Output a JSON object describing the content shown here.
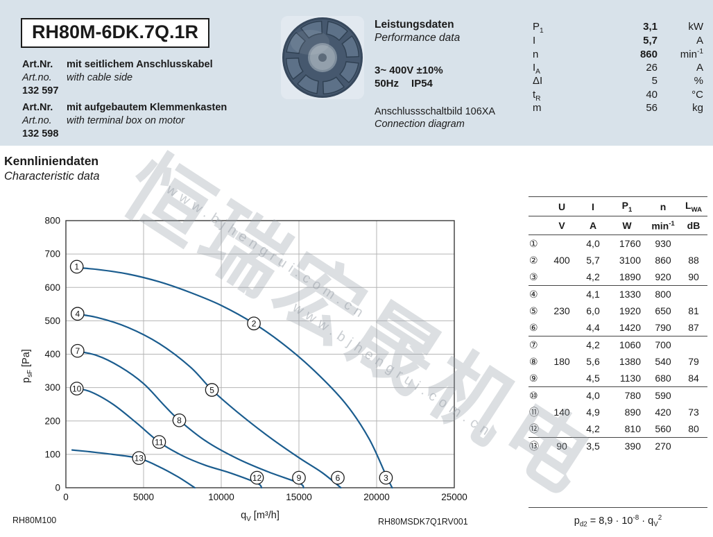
{
  "header": {
    "bg": "#d8e2ea",
    "model": "RH80M-6DK.7Q.1R",
    "articles": [
      {
        "label_de": "Art.Nr.",
        "desc_de": "mit seitlichem Anschlusskabel",
        "label_en": "Art.no.",
        "desc_en": "with cable side",
        "number": "132 597"
      },
      {
        "label_de": "Art.Nr.",
        "desc_de": "mit aufgebautem Klemmenkasten",
        "label_en": "Art.no.",
        "desc_en": "with terminal box on motor",
        "number": "132 598"
      }
    ],
    "performance": {
      "title_de": "Leistungsdaten",
      "title_en": "Performance data",
      "voltage": "3~ 400V ±10%",
      "frequency": "50Hz",
      "protection": "IP54",
      "diagram_de": "Anschlussschaltbild 106XA",
      "diagram_en": "Connection diagram",
      "params": [
        {
          "sym": [
            [
              "t",
              "P"
            ],
            [
              "sub",
              "1"
            ]
          ],
          "value": "3,1",
          "unit": [
            [
              "t",
              "kW"
            ]
          ],
          "bold": true
        },
        {
          "sym": [
            [
              "t",
              "I"
            ]
          ],
          "value": "5,7",
          "unit": [
            [
              "t",
              "A"
            ]
          ],
          "bold": true
        },
        {
          "sym": [
            [
              "t",
              "n"
            ]
          ],
          "value": "860",
          "unit": [
            [
              "t",
              "min"
            ],
            [
              "sup",
              "-1"
            ]
          ],
          "bold": true
        },
        {
          "sym": [
            [
              "t",
              "I"
            ],
            [
              "sub",
              "A"
            ]
          ],
          "value": "26",
          "unit": [
            [
              "t",
              "A"
            ]
          ],
          "bold": false
        },
        {
          "sym": [
            [
              "t",
              "ΔI"
            ]
          ],
          "value": "5",
          "unit": [
            [
              "t",
              "%"
            ]
          ],
          "bold": false
        },
        {
          "sym": [
            [
              "t",
              "t"
            ],
            [
              "sub",
              "R"
            ]
          ],
          "value": "40",
          "unit": [
            [
              "t",
              "°C"
            ]
          ],
          "bold": false
        },
        {
          "sym": [
            [
              "t",
              "m"
            ]
          ],
          "value": "56",
          "unit": [
            [
              "t",
              "kg"
            ]
          ],
          "bold": false
        }
      ]
    }
  },
  "section": {
    "title_de": "Kennliniendaten",
    "title_en": "Characteristic data"
  },
  "chart_data": {
    "type": "line",
    "title": "Kennliniendaten / Characteristic data",
    "xlabel": "qV [m³/h]",
    "ylabel": "psF [Pa]",
    "xlabel_tokens": [
      [
        "t",
        "q"
      ],
      [
        "sub",
        "V"
      ],
      [
        "t",
        " [m³/h]"
      ]
    ],
    "ylabel_tokens": [
      [
        "t",
        "p"
      ],
      [
        "sub",
        "sF"
      ],
      [
        "t",
        " [Pa]"
      ]
    ],
    "xlim": [
      0,
      25000
    ],
    "ylim": [
      0,
      800
    ],
    "xticks": [
      0,
      5000,
      10000,
      15000,
      20000,
      25000
    ],
    "yticks": [
      0,
      100,
      200,
      300,
      400,
      500,
      600,
      700,
      800
    ],
    "grid": true,
    "legend": false,
    "curve_color": "#1a5c8e",
    "series": [
      {
        "name": "400V",
        "points": [
          [
            400,
            660
          ],
          [
            2000,
            654
          ],
          [
            4000,
            640
          ],
          [
            6000,
            617
          ],
          [
            8000,
            585
          ],
          [
            10000,
            546
          ],
          [
            12100,
            492
          ],
          [
            14000,
            430
          ],
          [
            16000,
            350
          ],
          [
            18000,
            252
          ],
          [
            19500,
            148
          ],
          [
            20600,
            38
          ],
          [
            21000,
            0
          ]
        ]
      },
      {
        "name": "230V",
        "points": [
          [
            400,
            522
          ],
          [
            2000,
            510
          ],
          [
            4000,
            480
          ],
          [
            6000,
            432
          ],
          [
            8000,
            362
          ],
          [
            9400,
            293
          ],
          [
            11000,
            228
          ],
          [
            13000,
            155
          ],
          [
            15000,
            90
          ],
          [
            16500,
            45
          ],
          [
            17700,
            0
          ]
        ]
      },
      {
        "name": "180V",
        "points": [
          [
            400,
            412
          ],
          [
            2000,
            396
          ],
          [
            3500,
            362
          ],
          [
            5000,
            312
          ],
          [
            6300,
            248
          ],
          [
            7300,
            202
          ],
          [
            9000,
            140
          ],
          [
            11000,
            88
          ],
          [
            13000,
            48
          ],
          [
            15000,
            14
          ],
          [
            15300,
            0
          ]
        ]
      },
      {
        "name": "140V",
        "points": [
          [
            400,
            298
          ],
          [
            1500,
            289
          ],
          [
            3000,
            251
          ],
          [
            4500,
            196
          ],
          [
            6000,
            137
          ],
          [
            7500,
            96
          ],
          [
            9000,
            67
          ],
          [
            10600,
            44
          ],
          [
            12300,
            14
          ],
          [
            12600,
            0
          ]
        ]
      },
      {
        "name": "90V",
        "points": [
          [
            400,
            113
          ],
          [
            1500,
            108
          ],
          [
            3000,
            100
          ],
          [
            4700,
            88
          ],
          [
            6000,
            63
          ],
          [
            7200,
            33
          ],
          [
            8300,
            0
          ]
        ]
      }
    ],
    "markers": [
      {
        "label": "1",
        "q": 700,
        "p": 662
      },
      {
        "label": "2",
        "q": 12100,
        "p": 492
      },
      {
        "label": "3",
        "q": 20600,
        "p": 30
      },
      {
        "label": "4",
        "q": 750,
        "p": 521
      },
      {
        "label": "5",
        "q": 9400,
        "p": 293
      },
      {
        "label": "6",
        "q": 17500,
        "p": 30
      },
      {
        "label": "7",
        "q": 750,
        "p": 410
      },
      {
        "label": "8",
        "q": 7300,
        "p": 202
      },
      {
        "label": "9",
        "q": 15000,
        "p": 30
      },
      {
        "label": "10",
        "q": 700,
        "p": 297
      },
      {
        "label": "11",
        "q": 6000,
        "p": 137
      },
      {
        "label": "12",
        "q": 12300,
        "p": 30
      },
      {
        "label": "13",
        "q": 4700,
        "p": 89
      }
    ]
  },
  "table": {
    "headers": [
      [
        [
          "t",
          ""
        ]
      ],
      [
        [
          "t",
          "U"
        ]
      ],
      [
        [
          "t",
          "I"
        ]
      ],
      [
        [
          "t",
          "P"
        ],
        [
          "sub",
          "1"
        ]
      ],
      [
        [
          "t",
          "n"
        ]
      ],
      [
        [
          "t",
          "L"
        ],
        [
          "sub",
          "WA"
        ]
      ]
    ],
    "units": [
      [
        [
          "t",
          ""
        ]
      ],
      [
        [
          "t",
          "V"
        ]
      ],
      [
        [
          "t",
          "A"
        ]
      ],
      [
        [
          "t",
          "W"
        ]
      ],
      [
        [
          "t",
          "min"
        ],
        [
          "sup",
          "-1"
        ]
      ],
      [
        [
          "t",
          "dB"
        ]
      ]
    ],
    "rows": [
      {
        "num": "①",
        "u": "",
        "i": "4,0",
        "p1": "1760",
        "n": "930",
        "lwa": "",
        "group_start": false
      },
      {
        "num": "②",
        "u": "400",
        "i": "5,7",
        "p1": "3100",
        "n": "860",
        "lwa": "88",
        "group_start": false
      },
      {
        "num": "③",
        "u": "",
        "i": "4,2",
        "p1": "1890",
        "n": "920",
        "lwa": "90",
        "group_start": false
      },
      {
        "num": "④",
        "u": "",
        "i": "4,1",
        "p1": "1330",
        "n": "800",
        "lwa": "",
        "group_start": true
      },
      {
        "num": "⑤",
        "u": "230",
        "i": "6,0",
        "p1": "1920",
        "n": "650",
        "lwa": "81",
        "group_start": false
      },
      {
        "num": "⑥",
        "u": "",
        "i": "4,4",
        "p1": "1420",
        "n": "790",
        "lwa": "87",
        "group_start": false
      },
      {
        "num": "⑦",
        "u": "",
        "i": "4,2",
        "p1": "1060",
        "n": "700",
        "lwa": "",
        "group_start": true
      },
      {
        "num": "⑧",
        "u": "180",
        "i": "5,6",
        "p1": "1380",
        "n": "540",
        "lwa": "79",
        "group_start": false
      },
      {
        "num": "⑨",
        "u": "",
        "i": "4,5",
        "p1": "1130",
        "n": "680",
        "lwa": "84",
        "group_start": false
      },
      {
        "num": "⑩",
        "u": "",
        "i": "4,0",
        "p1": "780",
        "n": "590",
        "lwa": "",
        "group_start": true
      },
      {
        "num": "⑪",
        "u": "140",
        "i": "4,9",
        "p1": "890",
        "n": "420",
        "lwa": "73",
        "group_start": false
      },
      {
        "num": "⑫",
        "u": "",
        "i": "4,2",
        "p1": "810",
        "n": "560",
        "lwa": "80",
        "group_start": false
      },
      {
        "num": "⑬",
        "u": "90",
        "i": "3,5",
        "p1": "390",
        "n": "270",
        "lwa": "",
        "group_start": true
      }
    ]
  },
  "formula": {
    "tokens": [
      [
        "t",
        "p"
      ],
      [
        "sub",
        "d2"
      ],
      [
        "t",
        " = 8,9 · 10"
      ],
      [
        "sup",
        "-8"
      ],
      [
        "t",
        " · q"
      ],
      [
        "sub",
        "V"
      ],
      [
        "sup",
        "2"
      ]
    ]
  },
  "footer_codes": {
    "left": "RH80M100",
    "right": "RH80MSDK7Q1RV001"
  },
  "watermark": {
    "cjk": "恒瑞宏晟机电",
    "url": "www.bjhengrui.com.cn"
  }
}
